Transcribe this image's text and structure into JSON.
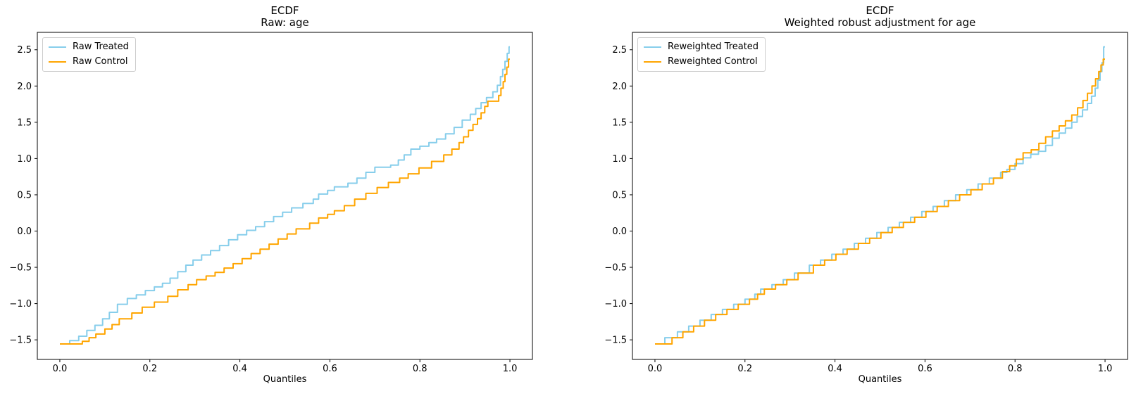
{
  "colors": {
    "treated_line": "#87CEEB",
    "control_line": "#FFA500",
    "spine": "#000000",
    "text": "#000000",
    "legend_border": "#cccccc",
    "background": "#ffffff"
  },
  "chart_data": [
    {
      "type": "line",
      "subtype": "step-quantile-ecdf",
      "title": "ECDF",
      "subtitle": "Raw: age",
      "xlabel": "Quantiles",
      "ylabel": "",
      "grid": false,
      "legend_position": "upper left",
      "xlim": [
        -0.05,
        1.05
      ],
      "ylim": [
        -1.77,
        2.74
      ],
      "x_tick_values": [
        0.0,
        0.2,
        0.4,
        0.6,
        0.8,
        1.0
      ],
      "x_tick_labels": [
        "0.0",
        "0.2",
        "0.4",
        "0.6",
        "0.8",
        "1.0"
      ],
      "y_tick_values": [
        2.5,
        2.0,
        1.5,
        1.0,
        0.5,
        0.0,
        -0.5,
        -1.0,
        -1.5
      ],
      "y_tick_labels": [
        "2.5",
        "2.0",
        "1.5",
        "1.0",
        "0.5",
        "0.0",
        "−0.5",
        "−1.0",
        "−1.5"
      ],
      "series": [
        {
          "name": "Raw Treated",
          "color_key": "treated_line",
          "color": "#87CEEB",
          "points": [
            [
              0.0,
              -1.557
            ],
            [
              0.022,
              -1.51
            ],
            [
              0.042,
              -1.45
            ],
            [
              0.06,
              -1.37
            ],
            [
              0.078,
              -1.3
            ],
            [
              0.095,
              -1.21
            ],
            [
              0.11,
              -1.12
            ],
            [
              0.128,
              -1.01
            ],
            [
              0.15,
              -0.93
            ],
            [
              0.17,
              -0.88
            ],
            [
              0.19,
              -0.82
            ],
            [
              0.21,
              -0.77
            ],
            [
              0.228,
              -0.72
            ],
            [
              0.245,
              -0.65
            ],
            [
              0.262,
              -0.56
            ],
            [
              0.28,
              -0.47
            ],
            [
              0.296,
              -0.4
            ],
            [
              0.315,
              -0.33
            ],
            [
              0.335,
              -0.27
            ],
            [
              0.355,
              -0.2
            ],
            [
              0.375,
              -0.12
            ],
            [
              0.395,
              -0.05
            ],
            [
              0.415,
              0.01
            ],
            [
              0.435,
              0.06
            ],
            [
              0.455,
              0.13
            ],
            [
              0.475,
              0.2
            ],
            [
              0.495,
              0.26
            ],
            [
              0.515,
              0.32
            ],
            [
              0.54,
              0.38
            ],
            [
              0.563,
              0.44
            ],
            [
              0.575,
              0.51
            ],
            [
              0.595,
              0.56
            ],
            [
              0.61,
              0.61
            ],
            [
              0.64,
              0.66
            ],
            [
              0.66,
              0.73
            ],
            [
              0.68,
              0.81
            ],
            [
              0.7,
              0.88
            ],
            [
              0.735,
              0.91
            ],
            [
              0.752,
              0.98
            ],
            [
              0.765,
              1.05
            ],
            [
              0.78,
              1.13
            ],
            [
              0.8,
              1.17
            ],
            [
              0.82,
              1.22
            ],
            [
              0.837,
              1.27
            ],
            [
              0.857,
              1.34
            ],
            [
              0.876,
              1.43
            ],
            [
              0.894,
              1.53
            ],
            [
              0.912,
              1.61
            ],
            [
              0.924,
              1.69
            ],
            [
              0.936,
              1.77
            ],
            [
              0.948,
              1.84
            ],
            [
              0.962,
              1.92
            ],
            [
              0.972,
              2.01
            ],
            [
              0.979,
              2.13
            ],
            [
              0.984,
              2.23
            ],
            [
              0.989,
              2.34
            ],
            [
              0.994,
              2.45
            ],
            [
              0.998,
              2.54
            ],
            [
              1.0,
              2.54
            ]
          ]
        },
        {
          "name": "Raw Control",
          "color_key": "control_line",
          "color": "#FFA500",
          "points": [
            [
              0.0,
              -1.557
            ],
            [
              0.05,
              -1.52
            ],
            [
              0.065,
              -1.47
            ],
            [
              0.08,
              -1.42
            ],
            [
              0.1,
              -1.35
            ],
            [
              0.116,
              -1.29
            ],
            [
              0.132,
              -1.21
            ],
            [
              0.16,
              -1.13
            ],
            [
              0.183,
              -1.05
            ],
            [
              0.21,
              -0.98
            ],
            [
              0.24,
              -0.9
            ],
            [
              0.262,
              -0.81
            ],
            [
              0.285,
              -0.74
            ],
            [
              0.304,
              -0.67
            ],
            [
              0.325,
              -0.62
            ],
            [
              0.345,
              -0.57
            ],
            [
              0.365,
              -0.51
            ],
            [
              0.385,
              -0.45
            ],
            [
              0.405,
              -0.38
            ],
            [
              0.425,
              -0.31
            ],
            [
              0.445,
              -0.25
            ],
            [
              0.465,
              -0.18
            ],
            [
              0.485,
              -0.11
            ],
            [
              0.505,
              -0.04
            ],
            [
              0.525,
              0.03
            ],
            [
              0.555,
              0.11
            ],
            [
              0.575,
              0.18
            ],
            [
              0.595,
              0.23
            ],
            [
              0.61,
              0.28
            ],
            [
              0.632,
              0.35
            ],
            [
              0.655,
              0.44
            ],
            [
              0.68,
              0.52
            ],
            [
              0.705,
              0.6
            ],
            [
              0.73,
              0.67
            ],
            [
              0.755,
              0.73
            ],
            [
              0.774,
              0.79
            ],
            [
              0.798,
              0.87
            ],
            [
              0.826,
              0.96
            ],
            [
              0.853,
              1.05
            ],
            [
              0.871,
              1.13
            ],
            [
              0.887,
              1.22
            ],
            [
              0.897,
              1.3
            ],
            [
              0.908,
              1.39
            ],
            [
              0.918,
              1.47
            ],
            [
              0.928,
              1.55
            ],
            [
              0.936,
              1.63
            ],
            [
              0.944,
              1.72
            ],
            [
              0.951,
              1.79
            ],
            [
              0.975,
              1.87
            ],
            [
              0.98,
              1.97
            ],
            [
              0.985,
              2.06
            ],
            [
              0.989,
              2.16
            ],
            [
              0.993,
              2.26
            ],
            [
              0.997,
              2.37
            ],
            [
              1.0,
              2.37
            ]
          ]
        }
      ]
    },
    {
      "type": "line",
      "subtype": "step-quantile-ecdf",
      "title": "ECDF",
      "subtitle": "Weighted robust adjustment for age",
      "xlabel": "Quantiles",
      "ylabel": "",
      "grid": false,
      "legend_position": "upper left",
      "xlim": [
        -0.05,
        1.05
      ],
      "ylim": [
        -1.77,
        2.74
      ],
      "x_tick_values": [
        0.0,
        0.2,
        0.4,
        0.6,
        0.8,
        1.0
      ],
      "x_tick_labels": [
        "0.0",
        "0.2",
        "0.4",
        "0.6",
        "0.8",
        "1.0"
      ],
      "y_tick_values": [
        2.5,
        2.0,
        1.5,
        1.0,
        0.5,
        0.0,
        -0.5,
        -1.0,
        -1.5
      ],
      "y_tick_labels": [
        "2.5",
        "2.0",
        "1.5",
        "1.0",
        "0.5",
        "0.0",
        "−0.5",
        "−1.0",
        "−1.5"
      ],
      "series": [
        {
          "name": "Reweighted Treated",
          "color_key": "treated_line",
          "color": "#87CEEB",
          "points": [
            [
              0.0,
              -1.557
            ],
            [
              0.022,
              -1.47
            ],
            [
              0.05,
              -1.39
            ],
            [
              0.075,
              -1.31
            ],
            [
              0.1,
              -1.23
            ],
            [
              0.125,
              -1.15
            ],
            [
              0.15,
              -1.08
            ],
            [
              0.175,
              -1.01
            ],
            [
              0.2,
              -0.94
            ],
            [
              0.222,
              -0.87
            ],
            [
              0.235,
              -0.8
            ],
            [
              0.26,
              -0.74
            ],
            [
              0.285,
              -0.67
            ],
            [
              0.31,
              -0.58
            ],
            [
              0.343,
              -0.47
            ],
            [
              0.368,
              -0.4
            ],
            [
              0.393,
              -0.32
            ],
            [
              0.418,
              -0.25
            ],
            [
              0.443,
              -0.17
            ],
            [
              0.468,
              -0.1
            ],
            [
              0.493,
              -0.02
            ],
            [
              0.518,
              0.05
            ],
            [
              0.543,
              0.12
            ],
            [
              0.568,
              0.19
            ],
            [
              0.593,
              0.27
            ],
            [
              0.618,
              0.34
            ],
            [
              0.643,
              0.42
            ],
            [
              0.668,
              0.5
            ],
            [
              0.693,
              0.57
            ],
            [
              0.718,
              0.65
            ],
            [
              0.743,
              0.73
            ],
            [
              0.768,
              0.81
            ],
            [
              0.782,
              0.85
            ],
            [
              0.8,
              0.93
            ],
            [
              0.818,
              1.01
            ],
            [
              0.835,
              1.06
            ],
            [
              0.852,
              1.1
            ],
            [
              0.868,
              1.18
            ],
            [
              0.883,
              1.28
            ],
            [
              0.898,
              1.35
            ],
            [
              0.912,
              1.42
            ],
            [
              0.926,
              1.5
            ],
            [
              0.938,
              1.58
            ],
            [
              0.95,
              1.67
            ],
            [
              0.961,
              1.76
            ],
            [
              0.97,
              1.86
            ],
            [
              0.978,
              1.97
            ],
            [
              0.984,
              2.08
            ],
            [
              0.989,
              2.2
            ],
            [
              0.993,
              2.32
            ],
            [
              0.997,
              2.54
            ],
            [
              1.0,
              2.54
            ]
          ]
        },
        {
          "name": "Reweighted Control",
          "color_key": "control_line",
          "color": "#FFA500",
          "points": [
            [
              0.0,
              -1.557
            ],
            [
              0.038,
              -1.47
            ],
            [
              0.062,
              -1.39
            ],
            [
              0.086,
              -1.31
            ],
            [
              0.11,
              -1.23
            ],
            [
              0.135,
              -1.15
            ],
            [
              0.16,
              -1.08
            ],
            [
              0.185,
              -1.01
            ],
            [
              0.21,
              -0.94
            ],
            [
              0.228,
              -0.87
            ],
            [
              0.243,
              -0.8
            ],
            [
              0.268,
              -0.74
            ],
            [
              0.293,
              -0.67
            ],
            [
              0.318,
              -0.58
            ],
            [
              0.352,
              -0.47
            ],
            [
              0.377,
              -0.4
            ],
            [
              0.402,
              -0.32
            ],
            [
              0.427,
              -0.25
            ],
            [
              0.452,
              -0.17
            ],
            [
              0.477,
              -0.1
            ],
            [
              0.502,
              -0.02
            ],
            [
              0.527,
              0.05
            ],
            [
              0.552,
              0.12
            ],
            [
              0.577,
              0.19
            ],
            [
              0.602,
              0.27
            ],
            [
              0.627,
              0.34
            ],
            [
              0.652,
              0.42
            ],
            [
              0.677,
              0.5
            ],
            [
              0.702,
              0.57
            ],
            [
              0.727,
              0.65
            ],
            [
              0.752,
              0.73
            ],
            [
              0.772,
              0.82
            ],
            [
              0.788,
              0.9
            ],
            [
              0.803,
              0.99
            ],
            [
              0.818,
              1.08
            ],
            [
              0.836,
              1.12
            ],
            [
              0.853,
              1.21
            ],
            [
              0.868,
              1.3
            ],
            [
              0.883,
              1.38
            ],
            [
              0.898,
              1.45
            ],
            [
              0.912,
              1.52
            ],
            [
              0.926,
              1.6
            ],
            [
              0.939,
              1.7
            ],
            [
              0.951,
              1.8
            ],
            [
              0.961,
              1.9
            ],
            [
              0.971,
              2.0
            ],
            [
              0.979,
              2.1
            ],
            [
              0.986,
              2.2
            ],
            [
              0.991,
              2.29
            ],
            [
              0.996,
              2.37
            ],
            [
              1.0,
              2.37
            ]
          ]
        }
      ]
    }
  ]
}
